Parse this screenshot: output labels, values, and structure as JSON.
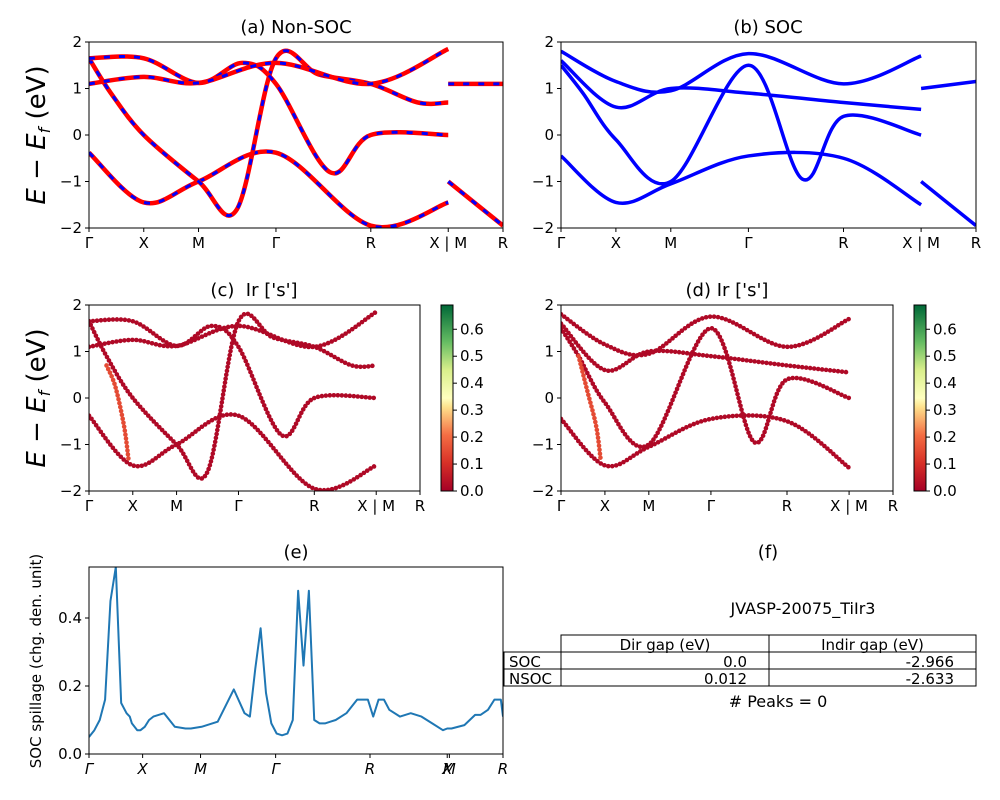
{
  "chart_data": [
    {
      "id": "a",
      "type": "line",
      "title": "(a) Non-SOC",
      "ylabel": "E − E_f (eV)",
      "ylim": [
        -2,
        2
      ],
      "yticks": [
        "2",
        "1",
        "0",
        "−1",
        "−2"
      ],
      "ytick_values": [
        2,
        1,
        0,
        -1,
        -2
      ],
      "kpath_labels": [
        "Γ",
        "X",
        "M",
        "Γ",
        "R",
        "X | M",
        "R"
      ],
      "kpath_positions": [
        0,
        0.5,
        1.0,
        1.707,
        2.573,
        3.28,
        3.78
      ],
      "style": "red solid with blue dashed overlay",
      "colors": {
        "line": "#ff0000",
        "overlay": "#0000ff"
      },
      "series": [
        {
          "name": "band1",
          "x": [
            0,
            0.5,
            1.0,
            1.707,
            2.573,
            3.28
          ],
          "y": [
            -0.38,
            -1.45,
            -1.0,
            -0.38,
            -1.95,
            -1.45
          ]
        },
        {
          "name": "band2",
          "x": [
            0,
            0.2,
            0.5,
            1.0,
            1.35,
            1.707,
            2.1,
            2.573,
            3.0,
            3.28
          ],
          "y": [
            1.65,
            0.9,
            0.0,
            -1.0,
            -1.6,
            1.65,
            1.3,
            1.1,
            0.7,
            0.7
          ]
        },
        {
          "name": "band3",
          "x": [
            0,
            0.5,
            1.0,
            1.4,
            1.707,
            2.2,
            2.573,
            3.28
          ],
          "y": [
            1.65,
            1.65,
            1.12,
            1.55,
            1.1,
            -0.8,
            0.0,
            0.0
          ]
        },
        {
          "name": "band4",
          "x": [
            0,
            0.5,
            1.0,
            1.707,
            2.573,
            3.28
          ],
          "y": [
            1.1,
            1.25,
            1.12,
            1.55,
            1.1,
            1.85
          ]
        },
        {
          "name": "band5",
          "x": [
            3.28,
            3.78
          ],
          "y": [
            1.1,
            1.1
          ]
        },
        {
          "name": "band6",
          "x": [
            3.28,
            3.78
          ],
          "y": [
            -1.0,
            -1.95
          ]
        }
      ]
    },
    {
      "id": "b",
      "type": "line",
      "title": "(b) SOC",
      "ylim": [
        -2,
        2
      ],
      "yticks": [
        "2",
        "1",
        "0",
        "−1",
        "−2"
      ],
      "ytick_values": [
        2,
        1,
        0,
        -1,
        -2
      ],
      "kpath_labels": [
        "Γ",
        "X",
        "M",
        "Γ",
        "R",
        "X | M",
        "R"
      ],
      "kpath_positions": [
        0,
        0.5,
        1.0,
        1.707,
        2.573,
        3.28,
        3.78
      ],
      "colors": {
        "line": "#0000ff"
      },
      "series": [
        {
          "name": "band1",
          "x": [
            0,
            0.5,
            1.0,
            1.707,
            2.573,
            3.28
          ],
          "y": [
            -0.45,
            -1.45,
            -1.05,
            -0.45,
            -0.5,
            -1.5
          ]
        },
        {
          "name": "band2",
          "x": [
            0,
            0.2,
            0.5,
            1.0,
            1.707,
            2.2,
            2.573,
            3.28
          ],
          "y": [
            1.5,
            0.9,
            -0.1,
            -1.0,
            1.5,
            -0.95,
            0.4,
            0.0
          ]
        },
        {
          "name": "band3",
          "x": [
            0,
            0.5,
            1.0,
            1.707,
            2.573,
            3.28
          ],
          "y": [
            1.8,
            1.15,
            0.95,
            1.75,
            1.1,
            1.7
          ]
        },
        {
          "name": "band4",
          "x": [
            0,
            0.5,
            1.0,
            1.707,
            2.573,
            3.28
          ],
          "y": [
            1.6,
            0.6,
            1.0,
            0.9,
            0.7,
            0.55
          ]
        },
        {
          "name": "band5",
          "x": [
            3.28,
            3.78
          ],
          "y": [
            1.0,
            1.15
          ]
        },
        {
          "name": "band6",
          "x": [
            3.28,
            3.78
          ],
          "y": [
            -1.0,
            -1.95
          ]
        }
      ]
    },
    {
      "id": "c",
      "type": "scatter",
      "title": "(c)  Ir ['s']",
      "ylabel": "E − E_f (eV)",
      "ylim": [
        -2,
        2
      ],
      "yticks": [
        "2",
        "1",
        "0",
        "−1",
        "−2"
      ],
      "ytick_values": [
        2,
        1,
        0,
        -1,
        -2
      ],
      "kpath_labels": [
        "Γ",
        "X",
        "M",
        "Γ",
        "R",
        "X | M",
        "R"
      ],
      "kpath_positions": [
        0,
        0.5,
        1.0,
        1.707,
        2.573,
        3.28,
        3.78
      ],
      "colormap": "RdYlGn",
      "colorbar": {
        "range": [
          0,
          0.69
        ],
        "ticks": [
          "0.0",
          "0.1",
          "0.2",
          "0.3",
          "0.4",
          "0.5",
          "0.6"
        ],
        "tick_values": [
          0,
          0.1,
          0.2,
          0.3,
          0.4,
          0.5,
          0.6
        ]
      },
      "series": [
        {
          "name": "band1",
          "x": [
            0,
            0.5,
            1.0,
            1.707,
            2.573,
            3.28
          ],
          "y": [
            -0.38,
            -1.45,
            -1.0,
            -0.38,
            -1.95,
            -1.45
          ],
          "weight": 0.02
        },
        {
          "name": "band2",
          "x": [
            0,
            0.2,
            0.5,
            1.0,
            1.35,
            1.707,
            2.1,
            2.573,
            3.0,
            3.28
          ],
          "y": [
            1.65,
            0.9,
            0.0,
            -1.0,
            -1.6,
            1.65,
            1.3,
            1.1,
            0.7,
            0.7
          ],
          "weight": 0.02
        },
        {
          "name": "band3",
          "x": [
            0,
            0.5,
            1.0,
            1.4,
            1.707,
            2.2,
            2.573,
            3.28
          ],
          "y": [
            1.65,
            1.65,
            1.12,
            1.55,
            1.1,
            -0.8,
            0.0,
            0.0
          ],
          "weight": 0.02
        },
        {
          "name": "band4",
          "x": [
            0,
            0.5,
            1.0,
            1.707,
            2.573,
            3.28
          ],
          "y": [
            1.1,
            1.25,
            1.12,
            1.55,
            1.1,
            1.85
          ],
          "weight": 0.02
        },
        {
          "name": "band5",
          "x": [
            0.2,
            0.3,
            0.4,
            0.45
          ],
          "y": [
            0.7,
            0.25,
            -0.6,
            -1.3
          ],
          "weight": 0.15
        }
      ]
    },
    {
      "id": "d",
      "type": "scatter",
      "title": "(d) Ir ['s']",
      "ylim": [
        -2,
        2
      ],
      "yticks": [
        "2",
        "1",
        "0",
        "−1",
        "−2"
      ],
      "ytick_values": [
        2,
        1,
        0,
        -1,
        -2
      ],
      "kpath_labels": [
        "Γ",
        "X",
        "M",
        "Γ",
        "R",
        "X | M",
        "R"
      ],
      "kpath_positions": [
        0,
        0.5,
        1.0,
        1.707,
        2.573,
        3.28,
        3.78
      ],
      "colormap": "RdYlGn",
      "colorbar": {
        "range": [
          0,
          0.69
        ],
        "ticks": [
          "0.0",
          "0.1",
          "0.2",
          "0.3",
          "0.4",
          "0.5",
          "0.6"
        ],
        "tick_values": [
          0,
          0.1,
          0.2,
          0.3,
          0.4,
          0.5,
          0.6
        ]
      },
      "series": [
        {
          "name": "band1",
          "x": [
            0,
            0.5,
            1.0,
            1.707,
            2.573,
            3.28
          ],
          "y": [
            -0.45,
            -1.45,
            -1.05,
            -0.45,
            -0.5,
            -1.5
          ],
          "weight": 0.02
        },
        {
          "name": "band2",
          "x": [
            0,
            0.2,
            0.5,
            1.0,
            1.707,
            2.2,
            2.573,
            3.28
          ],
          "y": [
            1.5,
            0.9,
            -0.1,
            -1.0,
            1.5,
            -0.95,
            0.4,
            0.0
          ],
          "weight": 0.02
        },
        {
          "name": "band3",
          "x": [
            0,
            0.5,
            1.0,
            1.707,
            2.573,
            3.28
          ],
          "y": [
            1.8,
            1.15,
            0.95,
            1.75,
            1.1,
            1.7
          ],
          "weight": 0.02
        },
        {
          "name": "band4",
          "x": [
            0,
            0.5,
            1.0,
            1.707,
            2.573,
            3.28
          ],
          "y": [
            1.6,
            0.6,
            1.0,
            0.9,
            0.7,
            0.55
          ],
          "weight": 0.02
        },
        {
          "name": "band5",
          "x": [
            0.2,
            0.3,
            0.4,
            0.45
          ],
          "y": [
            0.9,
            0.15,
            -0.6,
            -1.3
          ],
          "weight": 0.15
        }
      ]
    },
    {
      "id": "e",
      "type": "line",
      "title": "(e)",
      "ylabel": "SOC spillage (chg. den. unit)",
      "ylim": [
        0,
        0.55
      ],
      "yticks": [
        "0.0",
        "0.2",
        "0.4"
      ],
      "ytick_values": [
        0,
        0.2,
        0.4
      ],
      "kpath_labels": [
        "Γ",
        "X",
        "M",
        "Γ",
        "R",
        "X",
        "M",
        "R"
      ],
      "kpath_positions": [
        0,
        0.5,
        1.04,
        1.74,
        2.62,
        3.34,
        3.36,
        3.86
      ],
      "color": "#1f77b4",
      "x": [
        0,
        0.05,
        0.1,
        0.15,
        0.2,
        0.25,
        0.3,
        0.35,
        0.38,
        0.4,
        0.45,
        0.48,
        0.52,
        0.56,
        0.6,
        0.7,
        0.8,
        0.9,
        0.95,
        1.05,
        1.2,
        1.35,
        1.45,
        1.5,
        1.55,
        1.6,
        1.65,
        1.7,
        1.75,
        1.8,
        1.85,
        1.9,
        1.95,
        2.0,
        2.05,
        2.1,
        2.15,
        2.2,
        2.25,
        2.3,
        2.4,
        2.5,
        2.6,
        2.65,
        2.7,
        2.75,
        2.8,
        2.9,
        3.0,
        3.1,
        3.2,
        3.3,
        3.34,
        3.38,
        3.5,
        3.6,
        3.65,
        3.72,
        3.78,
        3.84,
        3.86
      ],
      "y": [
        0.05,
        0.07,
        0.1,
        0.16,
        0.45,
        0.55,
        0.15,
        0.12,
        0.11,
        0.09,
        0.07,
        0.07,
        0.08,
        0.1,
        0.11,
        0.12,
        0.08,
        0.075,
        0.075,
        0.08,
        0.095,
        0.19,
        0.12,
        0.11,
        0.25,
        0.37,
        0.18,
        0.09,
        0.06,
        0.055,
        0.06,
        0.1,
        0.48,
        0.26,
        0.48,
        0.1,
        0.09,
        0.09,
        0.095,
        0.1,
        0.12,
        0.16,
        0.16,
        0.11,
        0.16,
        0.16,
        0.13,
        0.11,
        0.12,
        0.11,
        0.09,
        0.07,
        0.075,
        0.075,
        0.085,
        0.115,
        0.115,
        0.13,
        0.16,
        0.16,
        0.11
      ]
    },
    {
      "id": "f",
      "type": "table",
      "title": "(f)",
      "subtitle": "JVASP-20075_TiIr3",
      "columns": [
        "Dir gap (eV)",
        "Indir gap (eV)"
      ],
      "rows": [
        {
          "label": "SOC",
          "values": [
            "0.0",
            "-2.966"
          ]
        },
        {
          "label": "NSOC",
          "values": [
            "0.012",
            "-2.633"
          ]
        }
      ],
      "footer": "# Peaks = 0"
    }
  ]
}
